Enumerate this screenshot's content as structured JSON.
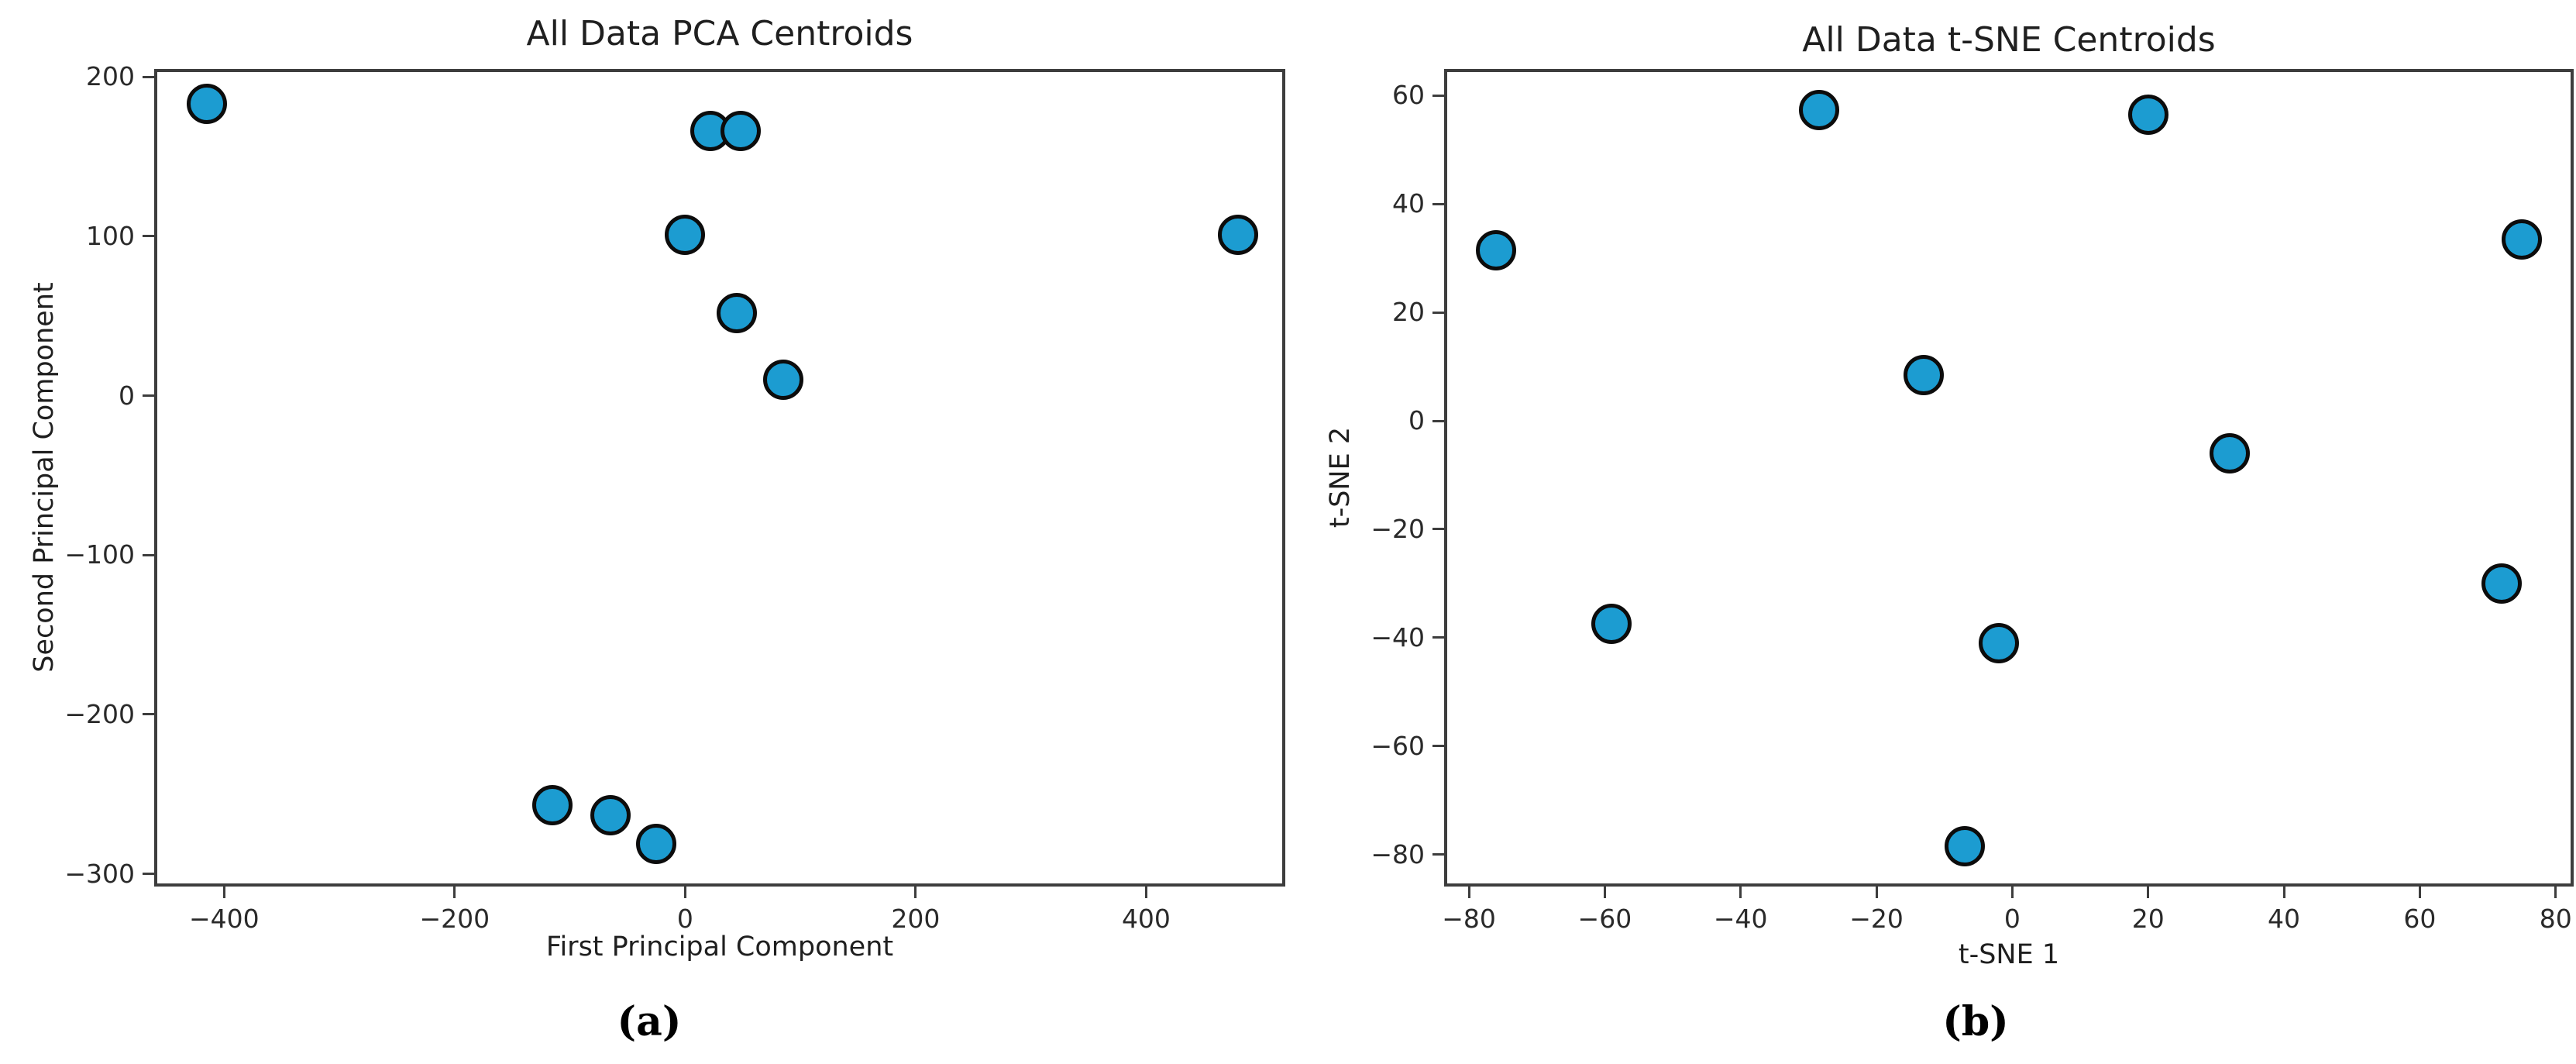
{
  "captions": {
    "a": "(a)",
    "b": "(b)"
  },
  "style": {
    "marker_fill": "#1c9cd1",
    "marker_edge": "#0c0c0c",
    "spine_color": "#3d3d3d",
    "text_color": "#1f1f1f",
    "background": "#ffffff"
  },
  "chart_data": [
    {
      "type": "scatter",
      "title": "All Data PCA Centroids",
      "xlabel": "First Principal Component",
      "ylabel": "Second Principal Component",
      "xlim": [
        -458,
        518
      ],
      "ylim": [
        -306,
        203
      ],
      "xticks": [
        -400,
        -200,
        0,
        200,
        400
      ],
      "yticks": [
        200,
        100,
        0,
        -100,
        -200,
        -300
      ],
      "grid": false,
      "marker_fill": "#1c9cd1",
      "marker_edge": "#0c0c0c",
      "points": [
        [
          -415,
          183
        ],
        [
          22,
          166
        ],
        [
          48,
          166
        ],
        [
          0,
          101
        ],
        [
          480,
          101
        ],
        [
          45,
          52
        ],
        [
          85,
          10
        ],
        [
          -115,
          -257
        ],
        [
          -65,
          -263
        ],
        [
          -25,
          -281
        ]
      ]
    },
    {
      "type": "scatter",
      "title": "All Data t-SNE Centroids",
      "xlabel": "t-SNE 1",
      "ylabel": "t-SNE 2",
      "xlim": [
        -83.2,
        82.2
      ],
      "ylim": [
        -85.3,
        64.3
      ],
      "xticks": [
        -80,
        -60,
        -40,
        -20,
        0,
        20,
        40,
        60,
        80
      ],
      "yticks": [
        60,
        40,
        20,
        0,
        -20,
        -40,
        -60,
        -80
      ],
      "grid": false,
      "marker_fill": "#1c9cd1",
      "marker_edge": "#0c0c0c",
      "points": [
        [
          -76,
          31.5
        ],
        [
          -28.5,
          57.3
        ],
        [
          20,
          56.5
        ],
        [
          75,
          33.5
        ],
        [
          -13,
          8.5
        ],
        [
          32,
          -6
        ],
        [
          -59,
          -37.5
        ],
        [
          -2,
          -41
        ],
        [
          72,
          -30
        ],
        [
          -7,
          -78.5
        ]
      ]
    }
  ]
}
